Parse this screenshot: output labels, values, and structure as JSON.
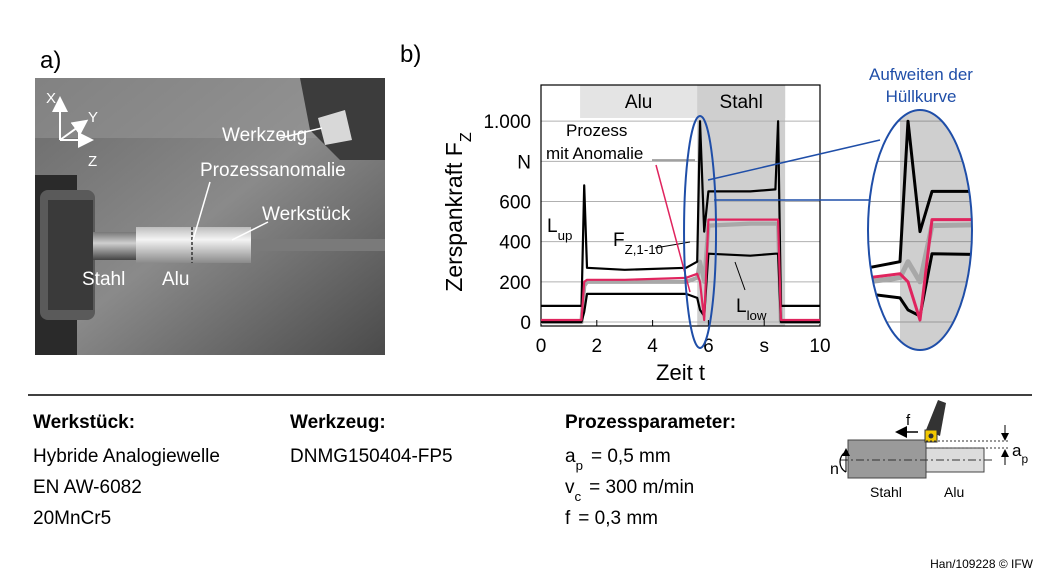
{
  "panel_a": {
    "label": "a)",
    "axes": [
      "X",
      "Y",
      "Z"
    ],
    "labels": [
      "Werkzeug",
      "Prozessanomalie",
      "Werkstück",
      "Stahl",
      "Alu"
    ]
  },
  "chart_data": {
    "type": "line",
    "panel_label": "b)",
    "x_label": "Zeit t",
    "y_label": "Zerspankraft F",
    "y_label_sub": "Z",
    "xlim": [
      0,
      10
    ],
    "xticks": [
      0,
      2,
      4,
      6,
      {
        "value": 8,
        "label": "s"
      },
      10
    ],
    "ylim": [
      0,
      1180
    ],
    "yticks": [
      0,
      200,
      400,
      600,
      {
        "value": 800,
        "label": "N"
      },
      {
        "value": 1000,
        "label": "1.000"
      }
    ],
    "grid": true,
    "regions": [
      {
        "label": "Alu",
        "start": 1.4,
        "end": 5.6,
        "color": "#e4e4e4"
      },
      {
        "label": "Stahl",
        "start": 5.6,
        "end": 8.75,
        "color": "#cfcfcf"
      }
    ],
    "x": [
      0,
      1.45,
      1.55,
      1.65,
      3,
      5.2,
      5.6,
      5.7,
      5.85,
      6,
      7.5,
      8.4,
      8.5,
      8.6,
      10
    ],
    "series": [
      {
        "name": "L",
        "name_sub": "up",
        "color": "#000000",
        "values": [
          80,
          80,
          680,
          270,
          260,
          270,
          300,
          1000,
          450,
          650,
          650,
          660,
          1000,
          80,
          80
        ]
      },
      {
        "name": "F",
        "name_sub": "Z,1-10",
        "color": "#a8a8a8",
        "values": [
          0,
          0,
          180,
          200,
          200,
          200,
          220,
          300,
          200,
          480,
          490,
          490,
          490,
          0,
          0
        ]
      },
      {
        "color": "#e0245e",
        "values": [
          10,
          10,
          200,
          210,
          210,
          220,
          240,
          200,
          10,
          510,
          510,
          510,
          510,
          10,
          10
        ]
      },
      {
        "name": "L",
        "name_sub": "low",
        "color": "#000000",
        "values": [
          0,
          0,
          50,
          140,
          140,
          140,
          120,
          60,
          30,
          340,
          330,
          340,
          340,
          0,
          0
        ]
      }
    ],
    "annotations": [
      "Prozess",
      "mit Anomalie"
    ],
    "zoom_label": [
      "Aufweiten der",
      "Hüllkurve"
    ]
  },
  "info": {
    "columns": [
      {
        "title": "Werkstück:",
        "lines": [
          "Hybride Analogiewelle",
          "EN AW-6082",
          "20MnCr5"
        ]
      },
      {
        "title": "Werkzeug:",
        "lines": [
          "DNMG150404-FP5"
        ]
      }
    ],
    "params": {
      "title": "Prozessparameter:",
      "lines": [
        {
          "main": "a",
          "sub": "p",
          "rest": "= 0,5 mm"
        },
        {
          "main": "v",
          "sub": "c",
          "rest": "= 300 m/min"
        },
        {
          "main": "f",
          "rest": "= 0,3 mm"
        }
      ]
    }
  },
  "diagram": {
    "feed": "f",
    "rotation": "n",
    "depth": "a",
    "depth_sub": "p",
    "left": "Stahl",
    "right": "Alu"
  },
  "footer": "Han/109228 © IFW"
}
